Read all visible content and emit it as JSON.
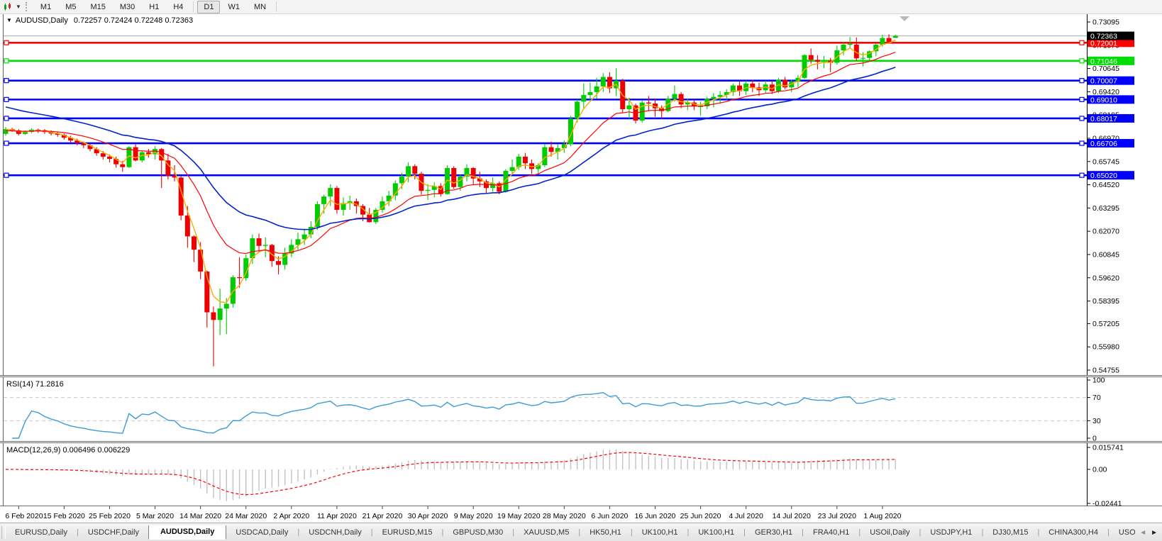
{
  "toolbar": {
    "timeframes": [
      {
        "label": "M1",
        "active": false
      },
      {
        "label": "M5",
        "active": false
      },
      {
        "label": "M15",
        "active": false
      },
      {
        "label": "M30",
        "active": false
      },
      {
        "label": "H1",
        "active": false
      },
      {
        "label": "H4",
        "active": false
      },
      {
        "label": "D1",
        "active": true
      },
      {
        "label": "W1",
        "active": false
      },
      {
        "label": "MN",
        "active": false
      }
    ]
  },
  "chart": {
    "symbol_title": "AUDUSD,Daily",
    "ohlc_text": "0.72257 0.72424 0.72248 0.72363",
    "dropdown_glyph": "▼"
  },
  "indicators": {
    "rsi": {
      "label": "RSI(14) 71.2816"
    },
    "macd": {
      "label": "MACD(12,26,9) 0.006496 0.006229"
    }
  },
  "tabs": {
    "items": [
      {
        "label": "EURUSD,Daily",
        "active": false
      },
      {
        "label": "USDCHF,Daily",
        "active": false
      },
      {
        "label": "AUDUSD,Daily",
        "active": true
      },
      {
        "label": "USDCAD,Daily",
        "active": false
      },
      {
        "label": "USDCNH,Daily",
        "active": false
      },
      {
        "label": "EURUSD,M15",
        "active": false
      },
      {
        "label": "GBPUSD,M30",
        "active": false
      },
      {
        "label": "XAUUSD,M5",
        "active": false
      },
      {
        "label": "HK50,H1",
        "active": false
      },
      {
        "label": "UK100,H1",
        "active": false
      },
      {
        "label": "UK100,H1",
        "active": false
      },
      {
        "label": "GER30,H1",
        "active": false
      },
      {
        "label": "FRA40,H1",
        "active": false
      },
      {
        "label": "USOil,Daily",
        "active": false
      },
      {
        "label": "USDJPY,H1",
        "active": false
      },
      {
        "label": "DJ30,M15",
        "active": false
      },
      {
        "label": "CHINA300,H4",
        "active": false
      },
      {
        "label": "USOil,H",
        "active": false
      }
    ],
    "scroll_left_glyph": "◄",
    "scroll_right_glyph": "►"
  },
  "chart_data": {
    "type": "candlestick",
    "symbol": "AUDUSD",
    "timeframe": "Daily",
    "current_bar": {
      "open": 0.72257,
      "high": 0.72424,
      "low": 0.72248,
      "close": 0.72363
    },
    "ylim": [
      0.54531,
      0.73506
    ],
    "y_axis_ticks": [
      0.73095,
      0.7187,
      0.70645,
      0.6942,
      0.68195,
      0.6697,
      0.65745,
      0.6452,
      0.63295,
      0.6207,
      0.60845,
      0.5962,
      0.58395,
      0.57205,
      0.5598,
      0.54755
    ],
    "x_tick_labels": [
      "6 Feb 2020",
      "15 Feb 2020",
      "25 Feb 2020",
      "5 Mar 2020",
      "14 Mar 2020",
      "24 Mar 2020",
      "2 Apr 2020",
      "11 Apr 2020",
      "21 Apr 2020",
      "30 Apr 2020",
      "9 May 2020",
      "19 May 2020",
      "28 May 2020",
      "6 Jun 2020",
      "16 Jun 2020",
      "25 Jun 2020",
      "4 Jul 2020",
      "14 Jul 2020",
      "23 Jul 2020",
      "1 Aug 2020"
    ],
    "x_tick_indices": [
      2,
      9,
      16,
      23,
      30,
      37,
      44,
      51,
      58,
      65,
      72,
      79,
      86,
      93,
      100,
      107,
      114,
      121,
      128,
      135
    ],
    "candle_colors": {
      "up": "#00cc00",
      "down": "#ee0000"
    },
    "candles": [
      [
        0.672,
        0.6756,
        0.671,
        0.6745
      ],
      [
        0.6745,
        0.6752,
        0.673,
        0.6738
      ],
      [
        0.6738,
        0.6745,
        0.6712,
        0.672
      ],
      [
        0.672,
        0.6738,
        0.6715,
        0.673
      ],
      [
        0.673,
        0.675,
        0.6724,
        0.6742
      ],
      [
        0.6742,
        0.6748,
        0.6725,
        0.6739
      ],
      [
        0.6739,
        0.6745,
        0.672,
        0.673
      ],
      [
        0.673,
        0.6738,
        0.6712,
        0.6722
      ],
      [
        0.6722,
        0.673,
        0.6705,
        0.6715
      ],
      [
        0.6715,
        0.6722,
        0.669,
        0.67
      ],
      [
        0.67,
        0.671,
        0.6675,
        0.6685
      ],
      [
        0.6685,
        0.6695,
        0.666,
        0.6672
      ],
      [
        0.6672,
        0.668,
        0.6645,
        0.666
      ],
      [
        0.666,
        0.6668,
        0.6628,
        0.664
      ],
      [
        0.664,
        0.665,
        0.6605,
        0.6618
      ],
      [
        0.6618,
        0.663,
        0.6585,
        0.66
      ],
      [
        0.66,
        0.6612,
        0.657,
        0.6588
      ],
      [
        0.6588,
        0.66,
        0.6542,
        0.656
      ],
      [
        0.656,
        0.6578,
        0.652,
        0.6545
      ],
      [
        0.6545,
        0.6655,
        0.654,
        0.665
      ],
      [
        0.665,
        0.6665,
        0.6575,
        0.658
      ],
      [
        0.658,
        0.663,
        0.657,
        0.6623
      ],
      [
        0.6623,
        0.664,
        0.6595,
        0.6613
      ],
      [
        0.6613,
        0.6655,
        0.6585,
        0.664
      ],
      [
        0.664,
        0.6645,
        0.6435,
        0.658
      ],
      [
        0.658,
        0.6615,
        0.648,
        0.65
      ],
      [
        0.65,
        0.6555,
        0.647,
        0.649
      ],
      [
        0.649,
        0.65,
        0.6265,
        0.629
      ],
      [
        0.629,
        0.634,
        0.612,
        0.618
      ],
      [
        0.618,
        0.6185,
        0.6045,
        0.611
      ],
      [
        0.611,
        0.615,
        0.5955,
        0.5995
      ],
      [
        0.5995,
        0.6,
        0.57,
        0.578
      ],
      [
        0.578,
        0.581,
        0.5495,
        0.574
      ],
      [
        0.574,
        0.5905,
        0.566,
        0.58
      ],
      [
        0.58,
        0.5855,
        0.5665,
        0.5825
      ],
      [
        0.5825,
        0.5975,
        0.5805,
        0.5965
      ],
      [
        0.5965,
        0.607,
        0.591,
        0.596
      ],
      [
        0.596,
        0.6085,
        0.5945,
        0.6065
      ],
      [
        0.6065,
        0.619,
        0.6035,
        0.617
      ],
      [
        0.617,
        0.6195,
        0.6095,
        0.613
      ],
      [
        0.613,
        0.6175,
        0.607,
        0.6135
      ],
      [
        0.6135,
        0.614,
        0.602,
        0.605
      ],
      [
        0.605,
        0.6075,
        0.598,
        0.603
      ],
      [
        0.603,
        0.612,
        0.6005,
        0.609
      ],
      [
        0.609,
        0.6165,
        0.607,
        0.6135
      ],
      [
        0.6135,
        0.62,
        0.611,
        0.6165
      ],
      [
        0.6165,
        0.622,
        0.6135,
        0.619
      ],
      [
        0.619,
        0.626,
        0.617,
        0.623
      ],
      [
        0.623,
        0.6365,
        0.6215,
        0.635
      ],
      [
        0.635,
        0.64,
        0.63,
        0.639
      ],
      [
        0.639,
        0.6455,
        0.634,
        0.6435
      ],
      [
        0.6435,
        0.6445,
        0.63,
        0.632
      ],
      [
        0.632,
        0.6385,
        0.629,
        0.6355
      ],
      [
        0.6355,
        0.6395,
        0.632,
        0.6365
      ],
      [
        0.6365,
        0.638,
        0.63,
        0.634
      ],
      [
        0.634,
        0.635,
        0.626,
        0.6295
      ],
      [
        0.6295,
        0.633,
        0.6253,
        0.6255
      ],
      [
        0.6255,
        0.633,
        0.6245,
        0.632
      ],
      [
        0.632,
        0.639,
        0.6305,
        0.6365
      ],
      [
        0.6365,
        0.642,
        0.634,
        0.6395
      ],
      [
        0.6395,
        0.6475,
        0.637,
        0.646
      ],
      [
        0.646,
        0.6515,
        0.643,
        0.6495
      ],
      [
        0.6495,
        0.657,
        0.6465,
        0.655
      ],
      [
        0.655,
        0.656,
        0.648,
        0.651
      ],
      [
        0.651,
        0.652,
        0.64,
        0.642
      ],
      [
        0.642,
        0.6455,
        0.6372,
        0.6425
      ],
      [
        0.6425,
        0.6465,
        0.6385,
        0.6445
      ],
      [
        0.6445,
        0.646,
        0.639,
        0.6403
      ],
      [
        0.6403,
        0.6555,
        0.64,
        0.654
      ],
      [
        0.654,
        0.655,
        0.643,
        0.644
      ],
      [
        0.644,
        0.6505,
        0.642,
        0.6495
      ],
      [
        0.6495,
        0.656,
        0.647,
        0.654
      ],
      [
        0.654,
        0.6545,
        0.6455,
        0.6485
      ],
      [
        0.6485,
        0.652,
        0.644,
        0.647
      ],
      [
        0.647,
        0.648,
        0.6405,
        0.6435
      ],
      [
        0.6435,
        0.649,
        0.6415,
        0.646
      ],
      [
        0.646,
        0.647,
        0.6402,
        0.6415
      ],
      [
        0.6415,
        0.6535,
        0.641,
        0.6525
      ],
      [
        0.6525,
        0.6585,
        0.6505,
        0.6545
      ],
      [
        0.6545,
        0.6615,
        0.653,
        0.66
      ],
      [
        0.66,
        0.662,
        0.6535,
        0.6565
      ],
      [
        0.6565,
        0.6585,
        0.651,
        0.6535
      ],
      [
        0.6535,
        0.6565,
        0.6505,
        0.6555
      ],
      [
        0.6555,
        0.6665,
        0.6545,
        0.665
      ],
      [
        0.665,
        0.668,
        0.66,
        0.6625
      ],
      [
        0.6625,
        0.6665,
        0.6585,
        0.6645
      ],
      [
        0.6645,
        0.6685,
        0.662,
        0.6665
      ],
      [
        0.6665,
        0.6815,
        0.6655,
        0.68
      ],
      [
        0.68,
        0.69,
        0.678,
        0.689
      ],
      [
        0.689,
        0.6985,
        0.6855,
        0.6925
      ],
      [
        0.6925,
        0.699,
        0.69,
        0.694
      ],
      [
        0.694,
        0.7015,
        0.6905,
        0.697
      ],
      [
        0.697,
        0.704,
        0.694,
        0.702
      ],
      [
        0.702,
        0.7045,
        0.6935,
        0.696
      ],
      [
        0.696,
        0.7065,
        0.692,
        0.7
      ],
      [
        0.7,
        0.701,
        0.683,
        0.685
      ],
      [
        0.685,
        0.691,
        0.68,
        0.687
      ],
      [
        0.687,
        0.688,
        0.6775,
        0.679
      ],
      [
        0.679,
        0.6895,
        0.678,
        0.6885
      ],
      [
        0.6885,
        0.692,
        0.684,
        0.688
      ],
      [
        0.688,
        0.6905,
        0.681,
        0.6855
      ],
      [
        0.6855,
        0.687,
        0.68,
        0.684
      ],
      [
        0.684,
        0.692,
        0.6835,
        0.6905
      ],
      [
        0.6905,
        0.6975,
        0.689,
        0.693
      ],
      [
        0.693,
        0.694,
        0.6855,
        0.6875
      ],
      [
        0.6875,
        0.6905,
        0.6845,
        0.6885
      ],
      [
        0.6885,
        0.69,
        0.6845,
        0.6865
      ],
      [
        0.6865,
        0.689,
        0.6815,
        0.6865
      ],
      [
        0.6865,
        0.6915,
        0.685,
        0.6905
      ],
      [
        0.6905,
        0.6935,
        0.686,
        0.6915
      ],
      [
        0.6915,
        0.6945,
        0.688,
        0.6925
      ],
      [
        0.6925,
        0.6955,
        0.69,
        0.694
      ],
      [
        0.694,
        0.6985,
        0.692,
        0.6975
      ],
      [
        0.6975,
        0.6995,
        0.692,
        0.6945
      ],
      [
        0.6945,
        0.7,
        0.6925,
        0.6985
      ],
      [
        0.6985,
        0.7005,
        0.694,
        0.6965
      ],
      [
        0.6965,
        0.699,
        0.692,
        0.695
      ],
      [
        0.695,
        0.7,
        0.6935,
        0.698
      ],
      [
        0.698,
        0.7,
        0.693,
        0.6945
      ],
      [
        0.6945,
        0.7015,
        0.6935,
        0.7005
      ],
      [
        0.7005,
        0.702,
        0.6955,
        0.6965
      ],
      [
        0.6965,
        0.7005,
        0.694,
        0.6995
      ],
      [
        0.6995,
        0.703,
        0.6965,
        0.7015
      ],
      [
        0.7015,
        0.714,
        0.701,
        0.7135
      ],
      [
        0.7135,
        0.717,
        0.709,
        0.711
      ],
      [
        0.711,
        0.7135,
        0.706,
        0.71
      ],
      [
        0.71,
        0.713,
        0.7065,
        0.7105
      ],
      [
        0.7105,
        0.712,
        0.7045,
        0.7095
      ],
      [
        0.7095,
        0.7185,
        0.7085,
        0.716
      ],
      [
        0.716,
        0.72,
        0.7135,
        0.719
      ],
      [
        0.719,
        0.723,
        0.717,
        0.7195
      ],
      [
        0.719,
        0.7228,
        0.7105,
        0.7118
      ],
      [
        0.7118,
        0.715,
        0.7075,
        0.712
      ],
      [
        0.712,
        0.716,
        0.71,
        0.7155
      ],
      [
        0.7155,
        0.7195,
        0.713,
        0.719
      ],
      [
        0.719,
        0.7242,
        0.718,
        0.7225
      ],
      [
        0.7225,
        0.7245,
        0.7195,
        0.7205
      ],
      [
        0.72257,
        0.72424,
        0.72248,
        0.72363
      ]
    ],
    "hlines": [
      {
        "price": 0.72001,
        "label": "0.72001",
        "color": "#ff0000"
      },
      {
        "price": 0.71046,
        "label": "0.71046",
        "color": "#00dd00"
      },
      {
        "price": 0.70007,
        "label": "0.70007",
        "color": "#0000ff"
      },
      {
        "price": 0.6901,
        "label": "0.69010",
        "color": "#0000ff"
      },
      {
        "price": 0.68017,
        "label": "0.68017",
        "color": "#0000ff"
      },
      {
        "price": 0.66706,
        "label": "0.66706",
        "color": "#0000ff"
      },
      {
        "price": 0.6502,
        "label": "0.65020",
        "color": "#0000ff"
      }
    ],
    "current_price_line": {
      "price": 0.72363,
      "label": "0.72363",
      "line_color": "#aaaaaa",
      "box_color": "#000000"
    },
    "moving_averages": [
      {
        "name": "ma-fast",
        "color": "#ffaa00",
        "alpha": 0.45,
        "seed": 0.6745,
        "width": 1.4
      },
      {
        "name": "ma-medium",
        "color": "#ff0000",
        "alpha": 0.13,
        "seed": 0.6735,
        "width": 1.2
      },
      {
        "name": "ma-slow",
        "color": "#0022cc",
        "alpha": 0.065,
        "seed": 0.687,
        "width": 1.6
      }
    ],
    "rsi_panel": {
      "period": 14,
      "current_value": 71.2816,
      "range": [
        0,
        100
      ],
      "axis_ticks": [
        100,
        70,
        30,
        0
      ],
      "level_lines": [
        70,
        30
      ],
      "line_color": "#3d9bd5"
    },
    "macd_panel": {
      "fast": 12,
      "slow": 26,
      "signal": 9,
      "main_value": 0.006496,
      "signal_value": 0.006229,
      "axis_ticks": [
        {
          "value": 0.015741,
          "label": "0.015741"
        },
        {
          "value": 0,
          "label": "0.00"
        },
        {
          "value": -0.02441,
          "label": "-0.02441"
        }
      ],
      "histogram_color": "#c2c2c2",
      "signal_color": "#ff0000"
    }
  }
}
